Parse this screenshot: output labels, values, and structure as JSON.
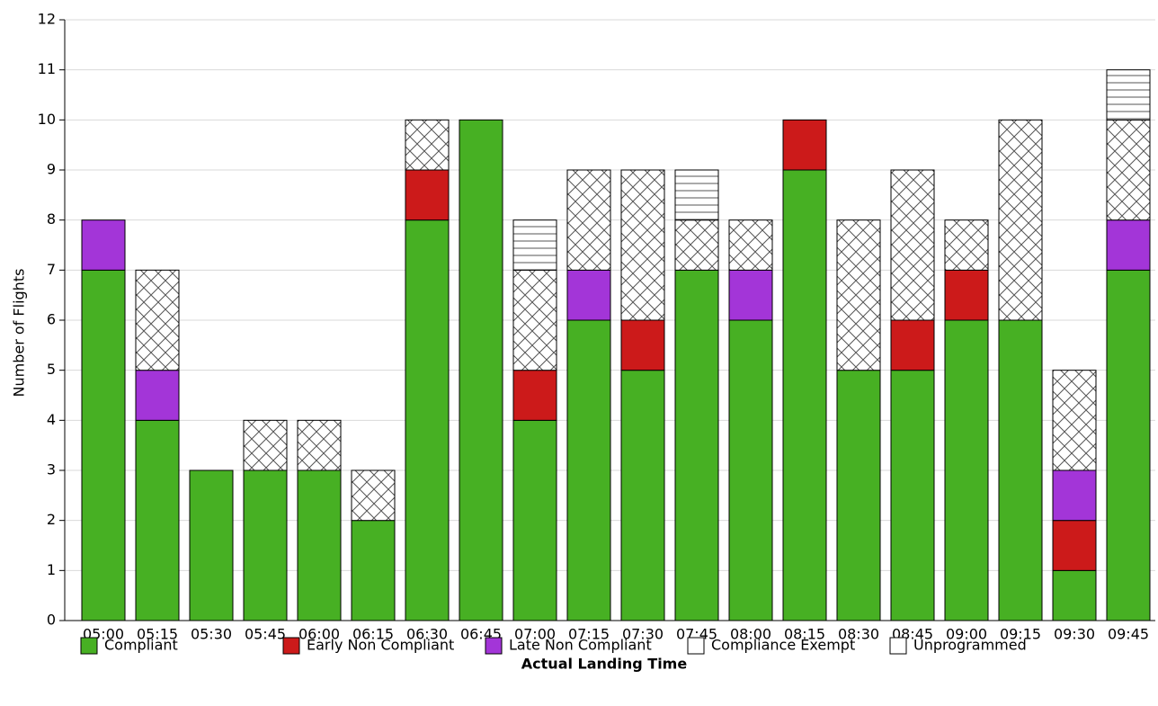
{
  "chart_data": {
    "type": "stacked_bar",
    "x_label": "Actual Landing Time",
    "y_label": "Number of Flights",
    "categories": [
      "05:00",
      "05:15",
      "05:30",
      "05:45",
      "06:00",
      "06:15",
      "06:30",
      "06:45",
      "07:00",
      "07:15",
      "07:30",
      "07:45",
      "08:00",
      "08:15",
      "08:30",
      "08:45",
      "09:00",
      "09:15",
      "09:30",
      "09:45"
    ],
    "series": [
      {
        "name": "Compliant",
        "color": "#47b023",
        "values": [
          7,
          4,
          3,
          3,
          3,
          2,
          8,
          10,
          4,
          6,
          5,
          7,
          6,
          9,
          5,
          5,
          6,
          6,
          1,
          7
        ]
      },
      {
        "name": "Early Non Compliant",
        "color": "#cc1a1a",
        "values": [
          0,
          0,
          0,
          0,
          0,
          0,
          1,
          0,
          1,
          0,
          1,
          0,
          0,
          1,
          0,
          1,
          1,
          0,
          1,
          0
        ]
      },
      {
        "name": "Late Non Compliant",
        "color": "#a335d8",
        "values": [
          1,
          1,
          0,
          0,
          0,
          0,
          0,
          0,
          0,
          1,
          0,
          0,
          1,
          0,
          0,
          0,
          0,
          0,
          1,
          1
        ]
      },
      {
        "name": "Compliance Exempt",
        "color": "#ffffff",
        "pattern": "crosshatch",
        "values": [
          0,
          2,
          0,
          1,
          1,
          1,
          1,
          0,
          2,
          2,
          3,
          1,
          1,
          0,
          3,
          3,
          1,
          4,
          2,
          2
        ]
      },
      {
        "name": "Unprogrammed",
        "color": "#ffffff",
        "pattern": "horizontal",
        "values": [
          0,
          0,
          0,
          0,
          0,
          0,
          0,
          0,
          1,
          0,
          0,
          1,
          0,
          0,
          0,
          0,
          0,
          0,
          0,
          1
        ]
      }
    ],
    "ylim": [
      0,
      12
    ],
    "yticks": [
      0,
      1,
      2,
      3,
      4,
      5,
      6,
      7,
      8,
      9,
      10,
      11,
      12
    ],
    "grid": true,
    "legend": "bottom"
  }
}
